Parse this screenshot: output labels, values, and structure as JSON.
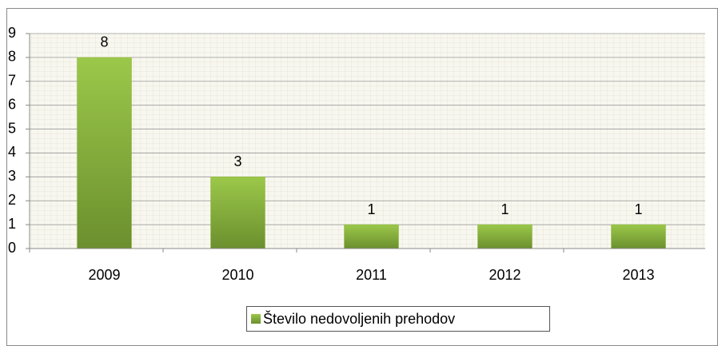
{
  "chart_data": {
    "type": "bar",
    "categories": [
      "2009",
      "2010",
      "2011",
      "2012",
      "2013"
    ],
    "series": [
      {
        "name": "Število nedovoljenih prehodov",
        "color": "#8db83a",
        "values": [
          8,
          3,
          1,
          1,
          1
        ]
      }
    ],
    "ylim": [
      0,
      9
    ],
    "yticks": [
      0,
      1,
      2,
      3,
      4,
      5,
      6,
      7,
      8,
      9
    ],
    "grid": true,
    "legend": "bottom"
  }
}
